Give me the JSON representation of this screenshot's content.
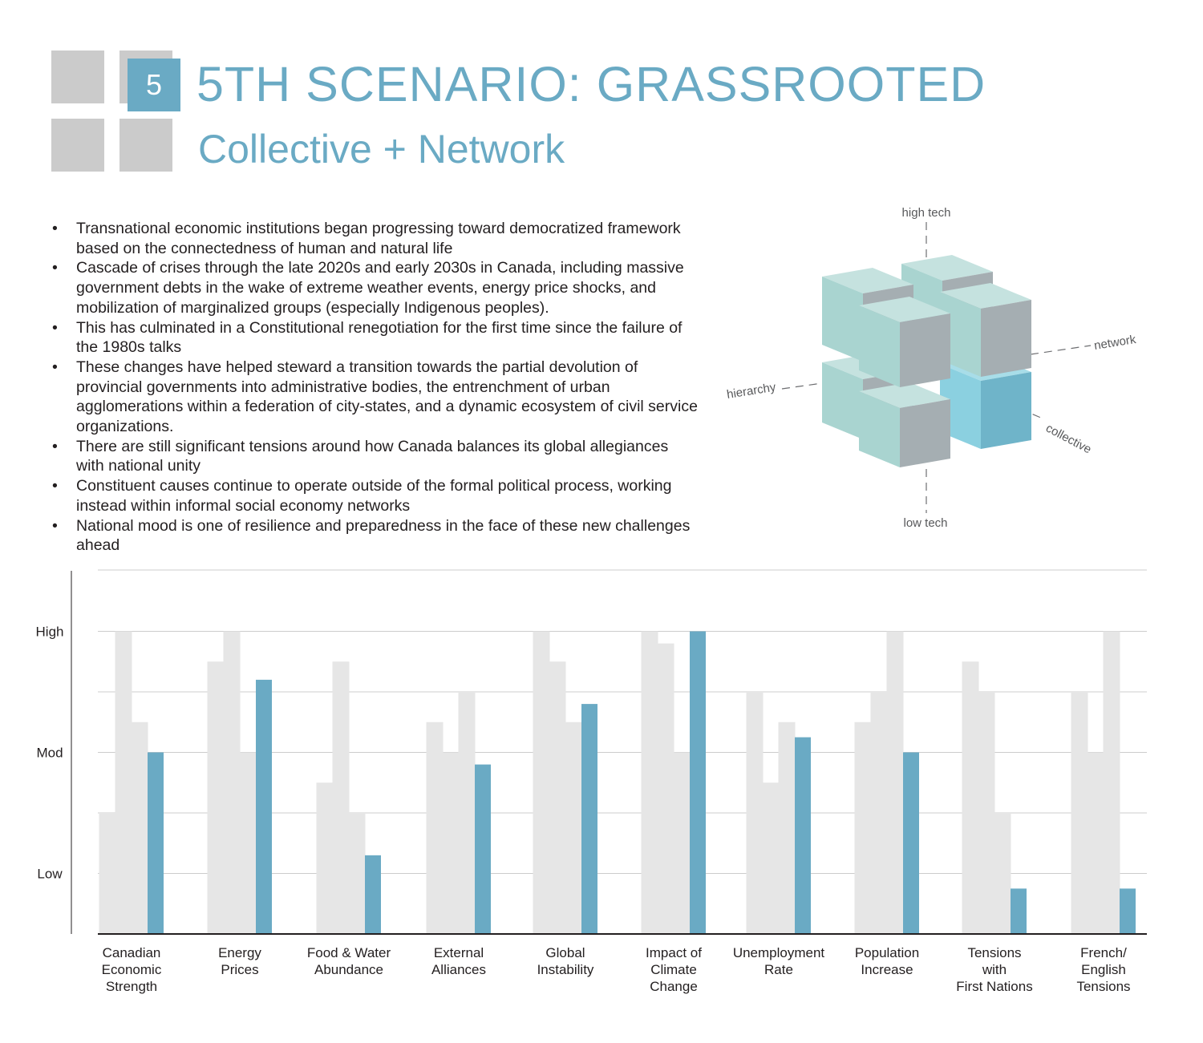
{
  "header": {
    "badge_number": "5",
    "title": "5TH SCENARIO: GRASSROOTED",
    "subtitle": "Collective + Network",
    "accent_color": "#6aaac4",
    "logo_color": "#cbcbcb"
  },
  "bullets": [
    "Transnational economic institutions began progressing toward democratized framework based on the connectedness of human and natural life",
    "Cascade of crises through the late 2020s and early 2030s in Canada, including massive government debts in the wake of extreme weather events, energy price shocks, and mobilization of marginalized groups (especially Indigenous peoples).",
    "This has culminated in a Constitutional renegotiation for the first time since the failure of the 1980s talks",
    "These changes have helped steward a transition towards the partial devolution of provincial governments into administrative bodies, the entrenchment of urban agglomerations within a federation of city-states, and a dynamic ecosystem of civil service organizations.",
    "There are still significant tensions around how Canada balances its global allegiances with national unity",
    "Constituent causes continue to operate outside of the formal political process, working instead within informal social economy networks",
    "National mood is one of resilience and preparedness in the face of these new challenges ahead"
  ],
  "cube_diagram": {
    "labels": {
      "high_tech": "high tech",
      "low_tech": "low tech",
      "network": "network",
      "hierarchy": "hierarchy",
      "collective": "collective"
    },
    "highlighted_cube": "collective + network"
  },
  "chart_data": {
    "type": "bar",
    "title": "",
    "xlabel": "",
    "ylabel": "",
    "y_tick_labels": [
      "High",
      "Mod",
      "Low"
    ],
    "y_tick_values": [
      5,
      3,
      1
    ],
    "ylim": [
      0,
      6
    ],
    "grid": true,
    "categories": [
      [
        "Canadian",
        "Economic",
        "Strength"
      ],
      [
        "Energy",
        "Prices"
      ],
      [
        "Food & Water",
        "Abundance"
      ],
      [
        "External",
        "Alliances"
      ],
      [
        "Global",
        "Instability"
      ],
      [
        "Impact of",
        "Climate",
        "Change"
      ],
      [
        "Unemployment",
        "Rate"
      ],
      [
        "Population",
        "Increase"
      ],
      [
        "Tensions",
        "with",
        "First Nations"
      ],
      [
        "French/",
        "English",
        "Tensions"
      ]
    ],
    "other_scenarios_values": [
      [
        2.0,
        5.0,
        3.5
      ],
      [
        4.5,
        5.0,
        3.0
      ],
      [
        2.5,
        4.5,
        2.0
      ],
      [
        3.5,
        3.0,
        4.0
      ],
      [
        5.0,
        4.5,
        3.5
      ],
      [
        5.0,
        4.8,
        3.0
      ],
      [
        4.0,
        2.5,
        3.5
      ],
      [
        3.5,
        4.0,
        5.0
      ],
      [
        4.5,
        4.0,
        2.0
      ],
      [
        4.0,
        3.0,
        5.0
      ]
    ],
    "values": [
      3.0,
      4.2,
      1.3,
      2.8,
      3.8,
      5.0,
      3.25,
      3.0,
      0.75,
      0.75
    ],
    "bar_color": "#6aaac4",
    "other_color": "#e6e6e6"
  }
}
